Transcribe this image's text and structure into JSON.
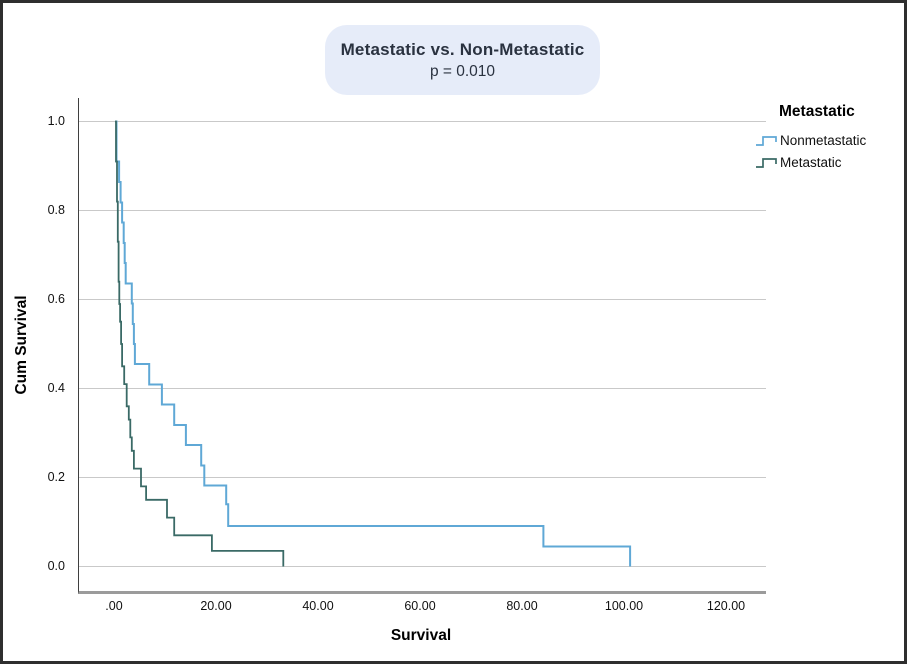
{
  "badge": {
    "title": "Metastatic vs. Non-Metastatic",
    "subtitle": "p = 0.010",
    "bg_color": "#e6ecf9",
    "text_color": "#2a3240"
  },
  "legend": {
    "title": "Metastatic",
    "entries": [
      {
        "label": "Nonmetastatic",
        "color": "#5fa8d6"
      },
      {
        "label": "Metastatic",
        "color": "#3a6a66"
      }
    ]
  },
  "chart_data": {
    "type": "line",
    "subtype": "kaplan-meier-step",
    "title": "Metastatic vs. Non-Metastatic",
    "p_value_text": "p = 0.010",
    "xlabel": "Survival",
    "ylabel": "Cum Survival",
    "xlim": [
      0,
      120
    ],
    "ylim": [
      0.0,
      1.0
    ],
    "grid": "horizontal",
    "legend_position": "top-right",
    "x_tick_values": [
      0,
      20,
      40,
      60,
      80,
      100,
      120
    ],
    "x_tick_labels": [
      ".00",
      "20.00",
      "40.00",
      "60.00",
      "80.00",
      "100.00",
      "120.00"
    ],
    "y_tick_values": [
      1.0,
      0.8,
      0.6,
      0.4,
      0.2,
      0.0
    ],
    "y_tick_labels": [
      "1.0",
      "0.8",
      "0.6",
      "0.4",
      "0.2",
      "0.0"
    ],
    "series": [
      {
        "name": "Nonmetastatic",
        "color": "#5fa8d6",
        "stroke_width": 2,
        "points": [
          [
            0,
            1.0
          ],
          [
            0.3,
            0.91
          ],
          [
            0.8,
            0.864
          ],
          [
            1.1,
            0.818
          ],
          [
            1.4,
            0.773
          ],
          [
            1.7,
            0.727
          ],
          [
            1.9,
            0.682
          ],
          [
            2.1,
            0.636
          ],
          [
            3.3,
            0.591
          ],
          [
            3.5,
            0.545
          ],
          [
            3.7,
            0.5
          ],
          [
            3.9,
            0.455
          ],
          [
            6.7,
            0.409
          ],
          [
            9.2,
            0.364
          ],
          [
            11.6,
            0.318
          ],
          [
            13.9,
            0.273
          ],
          [
            16.9,
            0.227
          ],
          [
            17.5,
            0.182
          ],
          [
            21.8,
            0.14
          ],
          [
            22.2,
            0.091
          ],
          [
            84,
            0.045
          ],
          [
            101,
            0.0
          ]
        ]
      },
      {
        "name": "Metastatic",
        "color": "#3a6a66",
        "stroke_width": 1.8,
        "points": [
          [
            0,
            1.0
          ],
          [
            0.2,
            0.91
          ],
          [
            0.4,
            0.82
          ],
          [
            0.55,
            0.73
          ],
          [
            0.7,
            0.64
          ],
          [
            0.85,
            0.59
          ],
          [
            1.0,
            0.55
          ],
          [
            1.2,
            0.5
          ],
          [
            1.4,
            0.45
          ],
          [
            1.8,
            0.41
          ],
          [
            2.3,
            0.36
          ],
          [
            2.7,
            0.33
          ],
          [
            3.0,
            0.29
          ],
          [
            3.3,
            0.26
          ],
          [
            3.7,
            0.22
          ],
          [
            5.1,
            0.18
          ],
          [
            6.1,
            0.15
          ],
          [
            10.2,
            0.11
          ],
          [
            11.6,
            0.07
          ],
          [
            19,
            0.035
          ],
          [
            33,
            0.0
          ]
        ]
      }
    ]
  }
}
